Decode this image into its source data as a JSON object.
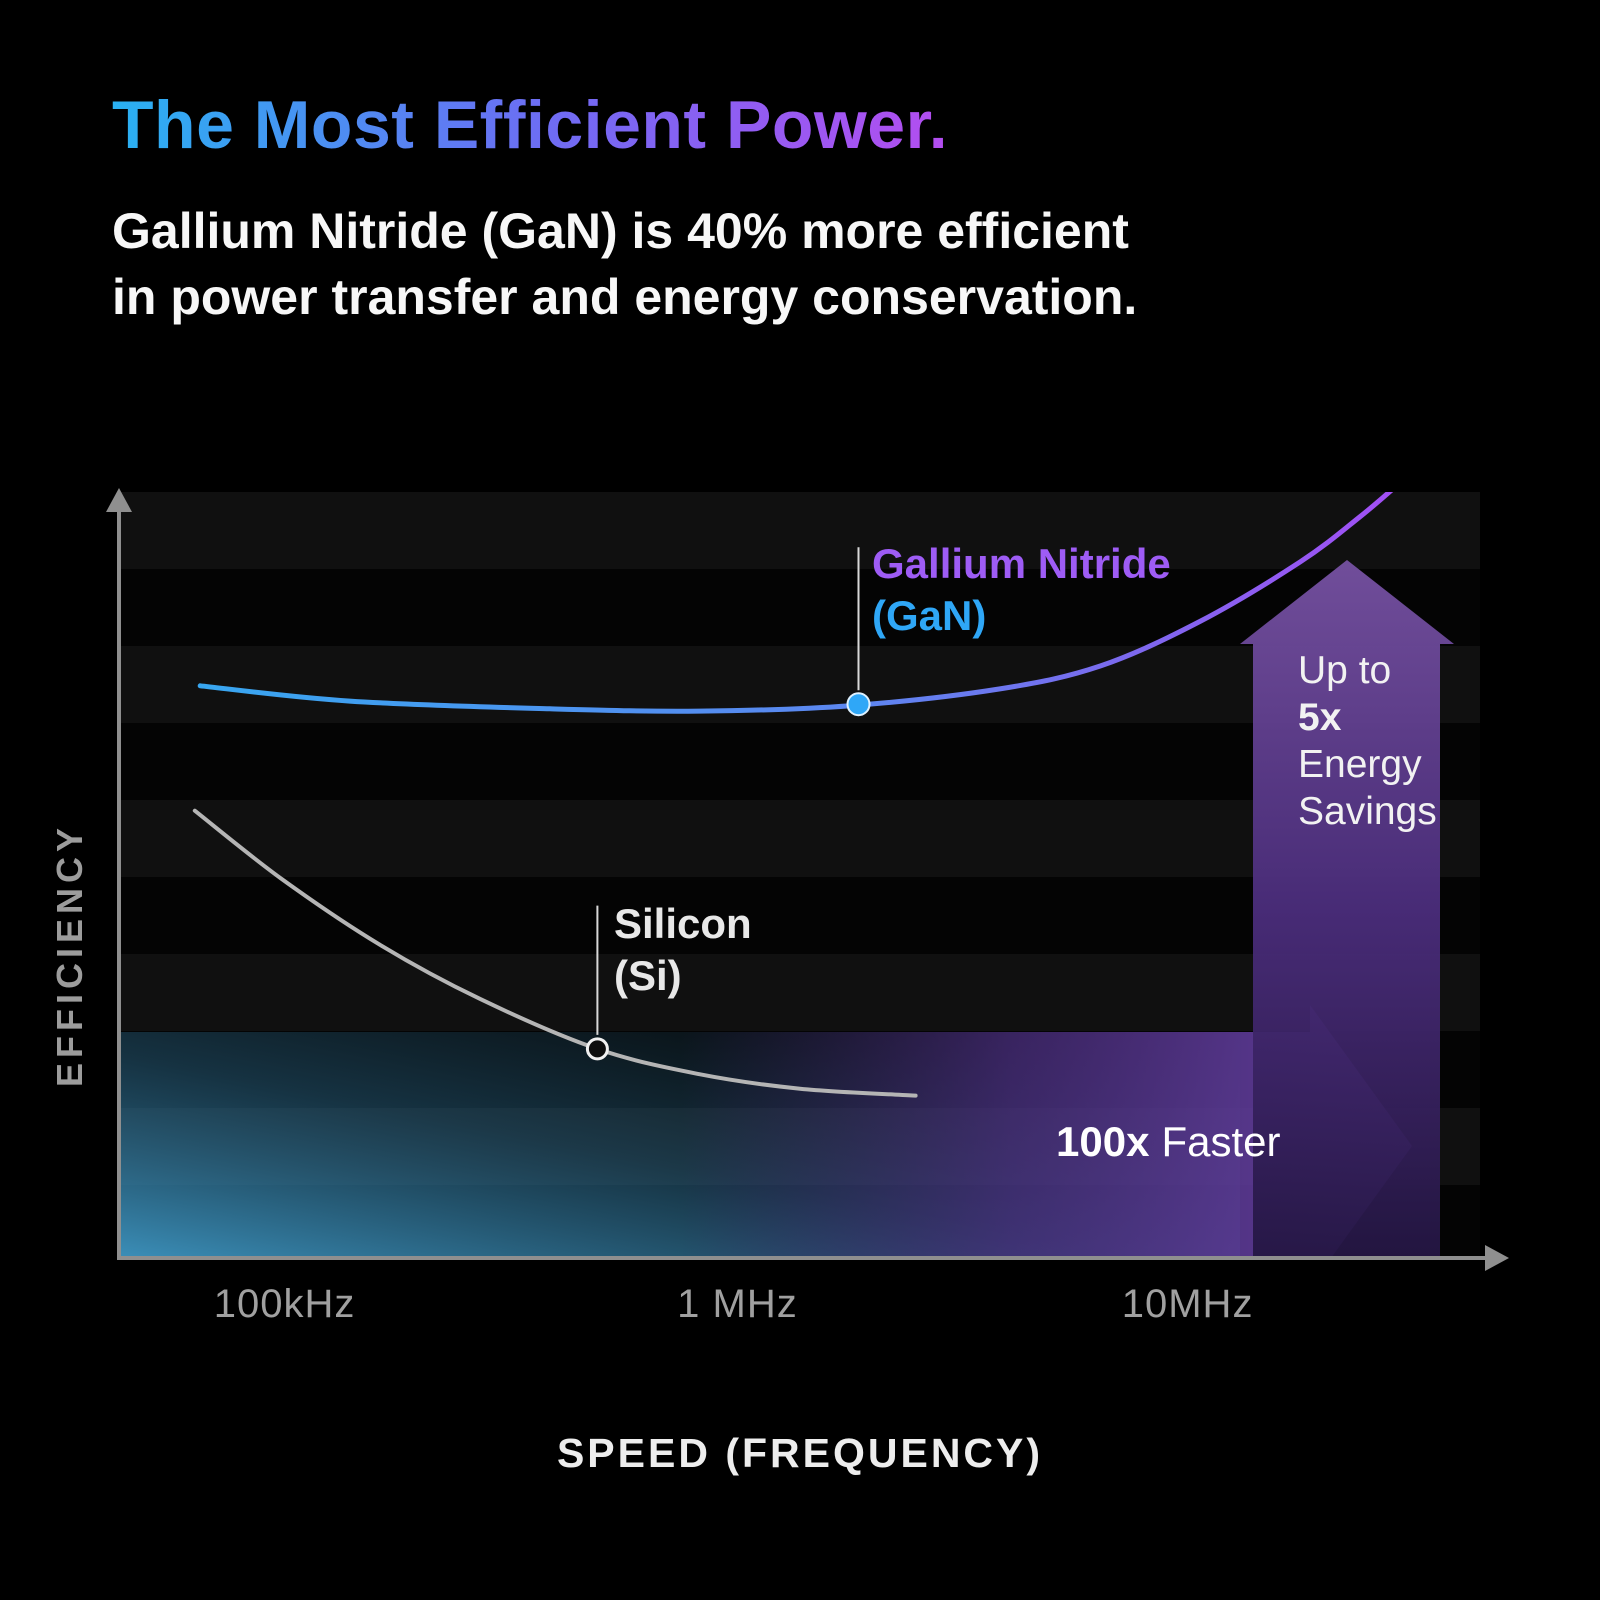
{
  "header": {
    "title": "The Most Efficient Power.",
    "subtitle_lines": [
      "Gallium Nitride (GaN) is 40% more efficient",
      "in power transfer and energy conservation."
    ]
  },
  "chart_data": {
    "type": "line",
    "title": "The Most Efficient Power.",
    "xlabel": "SPEED (FREQUENCY)",
    "ylabel": "EFFICIENCY",
    "x_scale": "log",
    "grid": false,
    "background_bands": true,
    "x_ticks": [
      {
        "label": "100kHz",
        "pos_pct": 12.1
      },
      {
        "label": "1 MHz",
        "pos_pct": 45.4
      },
      {
        "label": "10MHz",
        "pos_pct": 78.5
      }
    ],
    "series": [
      {
        "name": "Gallium Nitride (GaN)",
        "style": "gradient-blue-to-purple",
        "x_mhz": [
          0.065,
          0.14,
          0.39,
          0.82,
          1.8,
          3.8,
          6.3,
          10.5,
          17.5,
          23.7,
          29.4
        ],
        "efficiency_rel": [
          74.7,
          72.7,
          71.7,
          71.4,
          72.1,
          74.3,
          77.3,
          83.1,
          90.9,
          96.8,
          101.5
        ],
        "points_pct": [
          [
            5.9,
            25.3
          ],
          [
            16.9,
            27.3
          ],
          [
            31.6,
            28.3
          ],
          [
            42.6,
            28.6
          ],
          [
            53.7,
            27.9
          ],
          [
            64.7,
            25.7
          ],
          [
            72.1,
            22.7
          ],
          [
            79.4,
            16.9
          ],
          [
            86.8,
            9.1
          ],
          [
            91.2,
            3.2
          ],
          [
            94.3,
            -1.5
          ]
        ]
      },
      {
        "name": "Silicon (Si)",
        "style": "solid-gray",
        "x_mhz": [
          0.064,
          0.098,
          0.16,
          0.27,
          0.49,
          0.82,
          1.37,
          2.47
        ],
        "efficiency_rel": [
          58.4,
          49.6,
          40.9,
          33.8,
          27.3,
          24.0,
          22.1,
          21.2
        ],
        "points_pct": [
          [
            5.5,
            41.6
          ],
          [
            11.8,
            50.4
          ],
          [
            19.1,
            59.1
          ],
          [
            26.5,
            66.2
          ],
          [
            35.1,
            72.7
          ],
          [
            42.6,
            76.0
          ],
          [
            50.0,
            77.9
          ],
          [
            58.5,
            78.8
          ]
        ]
      }
    ],
    "annotations": {
      "gan": {
        "line1": "Gallium Nitride",
        "line2": "(GaN)",
        "marker_pct": [
          54.3,
          27.7
        ],
        "leader_top_pct": 7.2
      },
      "si": {
        "line1": "Silicon",
        "line2": "(Si)",
        "marker_pct": [
          35.1,
          72.7
        ],
        "leader_top_pct": 54.0
      },
      "energy_savings": {
        "lines": [
          "Up to",
          "5x",
          "Energy",
          "Savings"
        ],
        "bold_line_index": 1
      },
      "faster": {
        "bold": "100x",
        "text": "Faster"
      }
    }
  },
  "colors": {
    "background": "#000000",
    "title_gradient": [
      "#29b1f2",
      "#6e6cf3",
      "#b44df0"
    ],
    "gan_gradient": [
      "#38a6f0",
      "#5d86f0",
      "#7d68ee",
      "#a44ef5"
    ],
    "si_line": "#b5b5b5",
    "gan_label": "#9e5cf5",
    "gan_sub_label": "#2fa7f7",
    "axis": "#8f8f8f",
    "tick_text": "#a0a0a0",
    "purple_arrow": "#5c3a96",
    "blue_area": "#2f80ab"
  }
}
